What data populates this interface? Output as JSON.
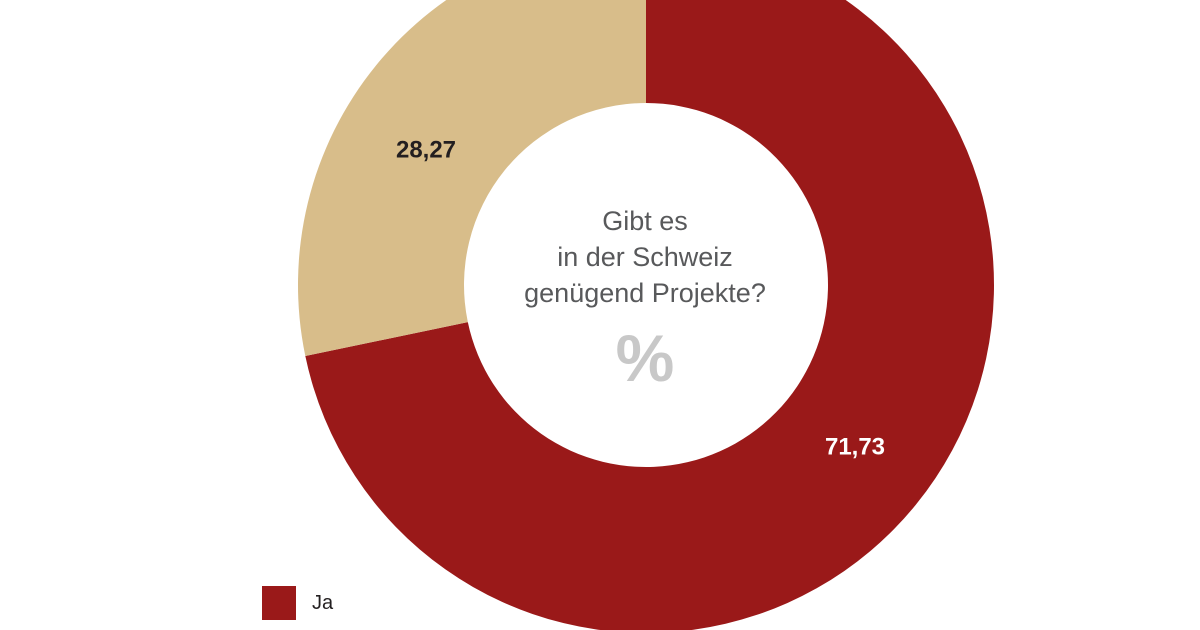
{
  "chart_data": {
    "type": "pie",
    "center_question": [
      "Gibt es",
      "in der Schweiz",
      "genügend Projekte?"
    ],
    "unit": "%",
    "slices": [
      {
        "name": "Ja",
        "value": 71.73,
        "label": "71,73",
        "color": "#9a1919",
        "label_color": "#ffffff"
      },
      {
        "name": "",
        "value": 28.27,
        "label": "28,27",
        "color": "#d8bd8a",
        "label_color": "#231f20"
      }
    ],
    "legend": [
      {
        "label": "Ja",
        "color": "#9a1919"
      }
    ]
  }
}
